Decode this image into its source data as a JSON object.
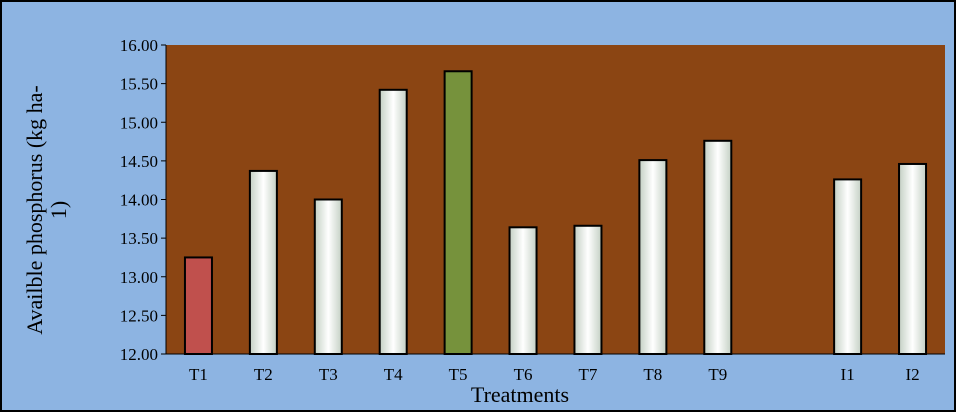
{
  "chart_data": {
    "type": "bar",
    "categories": [
      "T1",
      "T2",
      "T3",
      "T4",
      "T5",
      "T6",
      "T7",
      "T8",
      "T9",
      "",
      "I1",
      "I2"
    ],
    "values": [
      13.25,
      14.37,
      14.0,
      15.42,
      15.66,
      13.64,
      13.66,
      14.51,
      14.76,
      null,
      14.26,
      14.46
    ],
    "bar_styles": [
      "red",
      "white",
      "white",
      "white",
      "green",
      "white",
      "white",
      "white",
      "white",
      "none",
      "white",
      "white"
    ],
    "ylim": [
      12.0,
      16.0
    ],
    "ytick_step": 0.5,
    "ytick_labels": [
      "12.00",
      "12.50",
      "13.00",
      "13.50",
      "14.00",
      "14.50",
      "15.00",
      "15.50",
      "16.00"
    ],
    "xlabel": "Treatments",
    "ylabel_line1": "Availble phosphorus (kg ha-",
    "ylabel_line2": "1)",
    "grid": false,
    "colors": {
      "outer_background": "#8db4e2",
      "plot_background": "#8b4513",
      "red_bar": "#c0504d",
      "green_bar": "#76923c",
      "white_bar_edge": "#c4d0c4",
      "bar_outline": "#000000"
    }
  }
}
